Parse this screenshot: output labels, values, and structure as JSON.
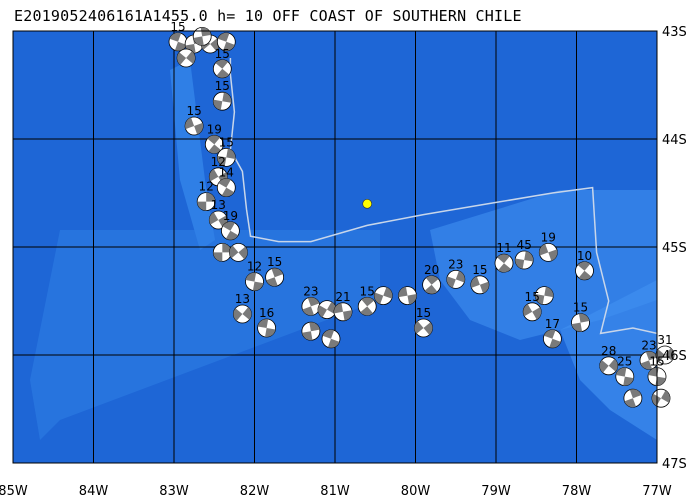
{
  "title": "E2019052406161A1455.0 h= 10 OFF COAST OF SOUTHERN CHILE",
  "colors": {
    "ocean": "#1e66d6",
    "trench": "#2f7fe6",
    "ridge": "#3f8ff0",
    "grid": "#000000",
    "track": "#c8d6ea",
    "beachball_dark": "#7a7a7a",
    "beachball_light": "#ffffff",
    "epicenter": "#ffff00"
  },
  "map": {
    "lon_range": [
      -85,
      -77
    ],
    "lat_range": [
      -47,
      -43
    ],
    "lon_ticks": [
      "85W",
      "84W",
      "83W",
      "82W",
      "81W",
      "80W",
      "79W",
      "78W",
      "77W"
    ],
    "lat_ticks": [
      "43S",
      "44S",
      "45S",
      "46S",
      "47S"
    ]
  },
  "track": [
    [
      -82.3,
      -43.25
    ],
    [
      -82.3,
      -43.4
    ],
    [
      -82.25,
      -43.75
    ],
    [
      -82.3,
      -44.1
    ],
    [
      -82.15,
      -44.3
    ],
    [
      -82.1,
      -44.65
    ],
    [
      -82.05,
      -44.9
    ],
    [
      -81.7,
      -44.95
    ],
    [
      -81.3,
      -44.95
    ],
    [
      -80.6,
      -44.8
    ],
    [
      -79.9,
      -44.7
    ],
    [
      -79.1,
      -44.6
    ],
    [
      -78.3,
      -44.5
    ],
    [
      -77.8,
      -44.45
    ],
    [
      -77.75,
      -45.05
    ],
    [
      -77.6,
      -45.5
    ],
    [
      -77.7,
      -45.8
    ],
    [
      -77.3,
      -45.75
    ],
    [
      -77.0,
      -45.8
    ]
  ],
  "events": [
    {
      "lon": -82.95,
      "lat": -43.1,
      "mag": "15",
      "rot": 20
    },
    {
      "lon": -82.75,
      "lat": -43.12,
      "mag": "",
      "rot": 80
    },
    {
      "lon": -82.55,
      "lat": -43.12,
      "mag": "",
      "rot": 140
    },
    {
      "lon": -82.35,
      "lat": -43.1,
      "mag": "",
      "rot": 200
    },
    {
      "lon": -82.65,
      "lat": -43.05,
      "mag": "",
      "rot": 260
    },
    {
      "lon": -82.85,
      "lat": -43.25,
      "mag": "",
      "rot": 310
    },
    {
      "lon": -82.4,
      "lat": -43.35,
      "mag": "15",
      "rot": 40
    },
    {
      "lon": -82.4,
      "lat": -43.65,
      "mag": "15",
      "rot": 100
    },
    {
      "lon": -82.75,
      "lat": -43.88,
      "mag": "15",
      "rot": 160
    },
    {
      "lon": -82.5,
      "lat": -44.05,
      "mag": "19",
      "rot": 220
    },
    {
      "lon": -82.35,
      "lat": -44.17,
      "mag": "15",
      "rot": 280
    },
    {
      "lon": -82.45,
      "lat": -44.35,
      "mag": "12",
      "rot": 330
    },
    {
      "lon": -82.35,
      "lat": -44.45,
      "mag": "14",
      "rot": 30
    },
    {
      "lon": -82.6,
      "lat": -44.58,
      "mag": "12",
      "rot": 90
    },
    {
      "lon": -82.45,
      "lat": -44.75,
      "mag": "13",
      "rot": 150
    },
    {
      "lon": -82.3,
      "lat": -44.85,
      "mag": "19",
      "rot": 210
    },
    {
      "lon": -82.4,
      "lat": -45.05,
      "mag": "",
      "rot": 270
    },
    {
      "lon": -82.2,
      "lat": -45.05,
      "mag": "",
      "rot": 320
    },
    {
      "lon": -82.0,
      "lat": -45.32,
      "mag": "12",
      "rot": 10
    },
    {
      "lon": -81.75,
      "lat": -45.28,
      "mag": "15",
      "rot": 70
    },
    {
      "lon": -82.15,
      "lat": -45.62,
      "mag": "13",
      "rot": 130
    },
    {
      "lon": -81.85,
      "lat": -45.75,
      "mag": "16",
      "rot": 190
    },
    {
      "lon": -81.3,
      "lat": -45.55,
      "mag": "23",
      "rot": 250
    },
    {
      "lon": -81.1,
      "lat": -45.58,
      "mag": "",
      "rot": 300
    },
    {
      "lon": -80.9,
      "lat": -45.6,
      "mag": "21",
      "rot": 350
    },
    {
      "lon": -80.6,
      "lat": -45.55,
      "mag": "15",
      "rot": 50
    },
    {
      "lon": -80.4,
      "lat": -45.45,
      "mag": "",
      "rot": 110
    },
    {
      "lon": -80.1,
      "lat": -45.45,
      "mag": "",
      "rot": 170
    },
    {
      "lon": -79.8,
      "lat": -45.35,
      "mag": "20",
      "rot": 230
    },
    {
      "lon": -79.5,
      "lat": -45.3,
      "mag": "23",
      "rot": 290
    },
    {
      "lon": -79.2,
      "lat": -45.35,
      "mag": "15",
      "rot": 340
    },
    {
      "lon": -78.9,
      "lat": -45.15,
      "mag": "11",
      "rot": 40
    },
    {
      "lon": -78.65,
      "lat": -45.12,
      "mag": "45",
      "rot": 100
    },
    {
      "lon": -78.35,
      "lat": -45.05,
      "mag": "19",
      "rot": 160
    },
    {
      "lon": -77.9,
      "lat": -45.22,
      "mag": "10",
      "rot": 220
    },
    {
      "lon": -78.4,
      "lat": -45.45,
      "mag": "",
      "rot": 280
    },
    {
      "lon": -78.55,
      "lat": -45.6,
      "mag": "15",
      "rot": 330
    },
    {
      "lon": -78.3,
      "lat": -45.85,
      "mag": "17",
      "rot": 20
    },
    {
      "lon": -77.95,
      "lat": -45.7,
      "mag": "15",
      "rot": 80
    },
    {
      "lon": -79.9,
      "lat": -45.75,
      "mag": "15",
      "rot": 140
    },
    {
      "lon": -81.05,
      "lat": -45.85,
      "mag": "",
      "rot": 200
    },
    {
      "lon": -81.3,
      "lat": -45.78,
      "mag": "",
      "rot": 260
    },
    {
      "lon": -77.6,
      "lat": -46.1,
      "mag": "28",
      "rot": 310
    },
    {
      "lon": -77.4,
      "lat": -46.2,
      "mag": "25",
      "rot": 10
    },
    {
      "lon": -77.1,
      "lat": -46.05,
      "mag": "23",
      "rot": 70
    },
    {
      "lon": -76.9,
      "lat": -46.0,
      "mag": "31",
      "rot": 130
    },
    {
      "lon": -77.0,
      "lat": -46.2,
      "mag": "15",
      "rot": 190
    },
    {
      "lon": -77.3,
      "lat": -46.4,
      "mag": "",
      "rot": 250
    },
    {
      "lon": -76.95,
      "lat": -46.4,
      "mag": "",
      "rot": 300
    }
  ],
  "epicenter": {
    "lon": -80.6,
    "lat": -44.6
  }
}
